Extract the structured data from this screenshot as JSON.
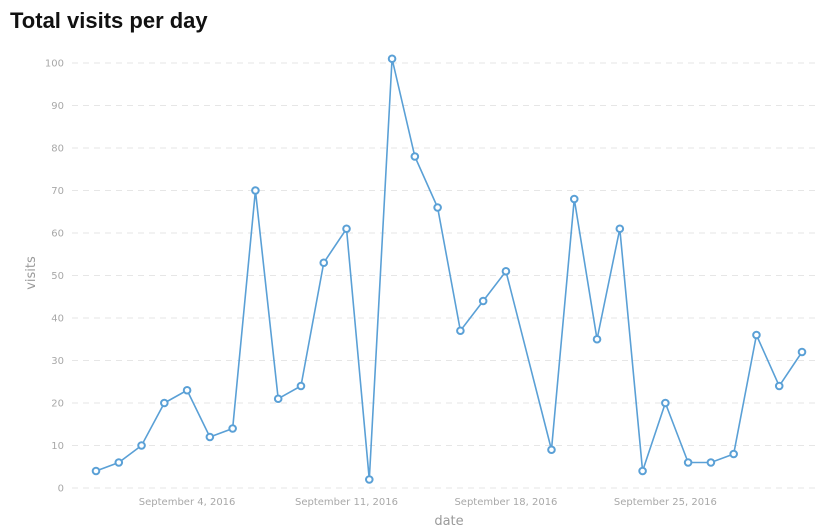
{
  "chart_data": {
    "type": "line",
    "title": "Total visits per day",
    "xlabel": "date",
    "ylabel": "visits",
    "ylim": [
      0,
      100
    ],
    "yticks": [
      0,
      10,
      20,
      30,
      40,
      50,
      60,
      70,
      80,
      90,
      100
    ],
    "grid": true,
    "xticks": [
      {
        "date": "2016-09-04",
        "label": "September 4, 2016"
      },
      {
        "date": "2016-09-11",
        "label": "September 11, 2016"
      },
      {
        "date": "2016-09-18",
        "label": "September 18, 2016"
      },
      {
        "date": "2016-09-25",
        "label": "September 25, 2016"
      }
    ],
    "series": [
      {
        "color": "#5aa0d6",
        "points": [
          {
            "x": "2016-08-31",
            "y": 4
          },
          {
            "x": "2016-09-01",
            "y": 6
          },
          {
            "x": "2016-09-02",
            "y": 10
          },
          {
            "x": "2016-09-03",
            "y": 20
          },
          {
            "x": "2016-09-04",
            "y": 23
          },
          {
            "x": "2016-09-05",
            "y": 12
          },
          {
            "x": "2016-09-06",
            "y": 14
          },
          {
            "x": "2016-09-07",
            "y": 70
          },
          {
            "x": "2016-09-08",
            "y": 21
          },
          {
            "x": "2016-09-09",
            "y": 24
          },
          {
            "x": "2016-09-10",
            "y": 53
          },
          {
            "x": "2016-09-11",
            "y": 61
          },
          {
            "x": "2016-09-12",
            "y": 2
          },
          {
            "x": "2016-09-13",
            "y": 101
          },
          {
            "x": "2016-09-14",
            "y": 78
          },
          {
            "x": "2016-09-15",
            "y": 66
          },
          {
            "x": "2016-09-16",
            "y": 37
          },
          {
            "x": "2016-09-17",
            "y": 44
          },
          {
            "x": "2016-09-18",
            "y": 51
          },
          {
            "x": "2016-09-20",
            "y": 9
          },
          {
            "x": "2016-09-21",
            "y": 68
          },
          {
            "x": "2016-09-22",
            "y": 35
          },
          {
            "x": "2016-09-23",
            "y": 61
          },
          {
            "x": "2016-09-24",
            "y": 4
          },
          {
            "x": "2016-09-25",
            "y": 20
          },
          {
            "x": "2016-09-26",
            "y": 6
          },
          {
            "x": "2016-09-27",
            "y": 6
          },
          {
            "x": "2016-09-28",
            "y": 8
          },
          {
            "x": "2016-09-29",
            "y": 36
          },
          {
            "x": "2016-09-30",
            "y": 24
          },
          {
            "x": "2016-10-01",
            "y": 32
          }
        ]
      }
    ]
  }
}
